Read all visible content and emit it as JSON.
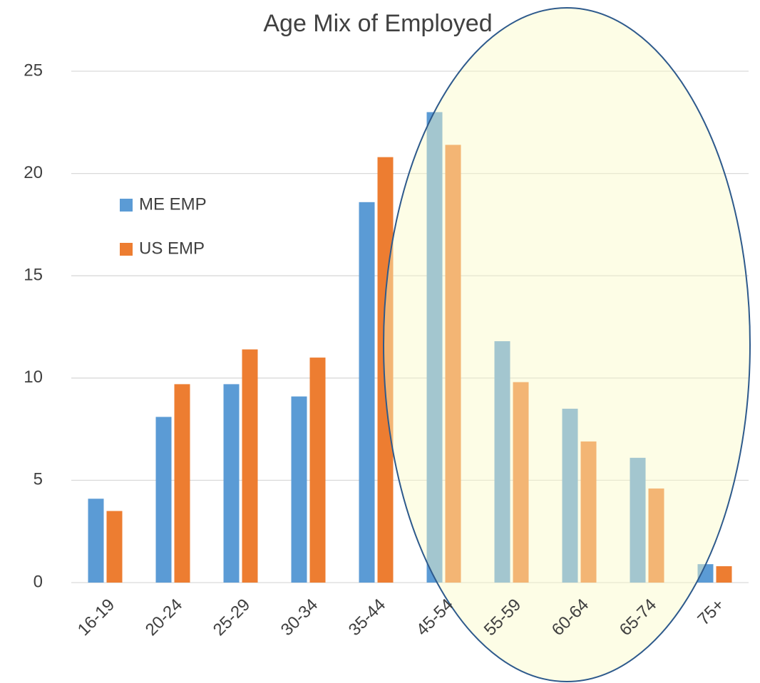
{
  "chart_data": {
    "type": "bar",
    "title": "Age Mix of Employed",
    "categories": [
      "16-19",
      "20-24",
      "25-29",
      "30-34",
      "35-44",
      "45-54",
      "55-59",
      "60-64",
      "65-74",
      "75+"
    ],
    "series": [
      {
        "name": "ME EMP",
        "color": "#5b9bd5",
        "values": [
          4.1,
          8.1,
          9.7,
          9.1,
          18.6,
          23.0,
          11.8,
          8.5,
          6.1,
          0.9
        ]
      },
      {
        "name": "US EMP",
        "color": "#ed7d31",
        "values": [
          3.5,
          9.7,
          11.4,
          11.0,
          20.8,
          21.4,
          9.8,
          6.9,
          4.6,
          0.8
        ]
      }
    ],
    "ylim": [
      0,
      25
    ],
    "yticks": [
      0,
      5,
      10,
      15,
      20,
      25
    ],
    "grid": true,
    "legend": "upper left"
  }
}
